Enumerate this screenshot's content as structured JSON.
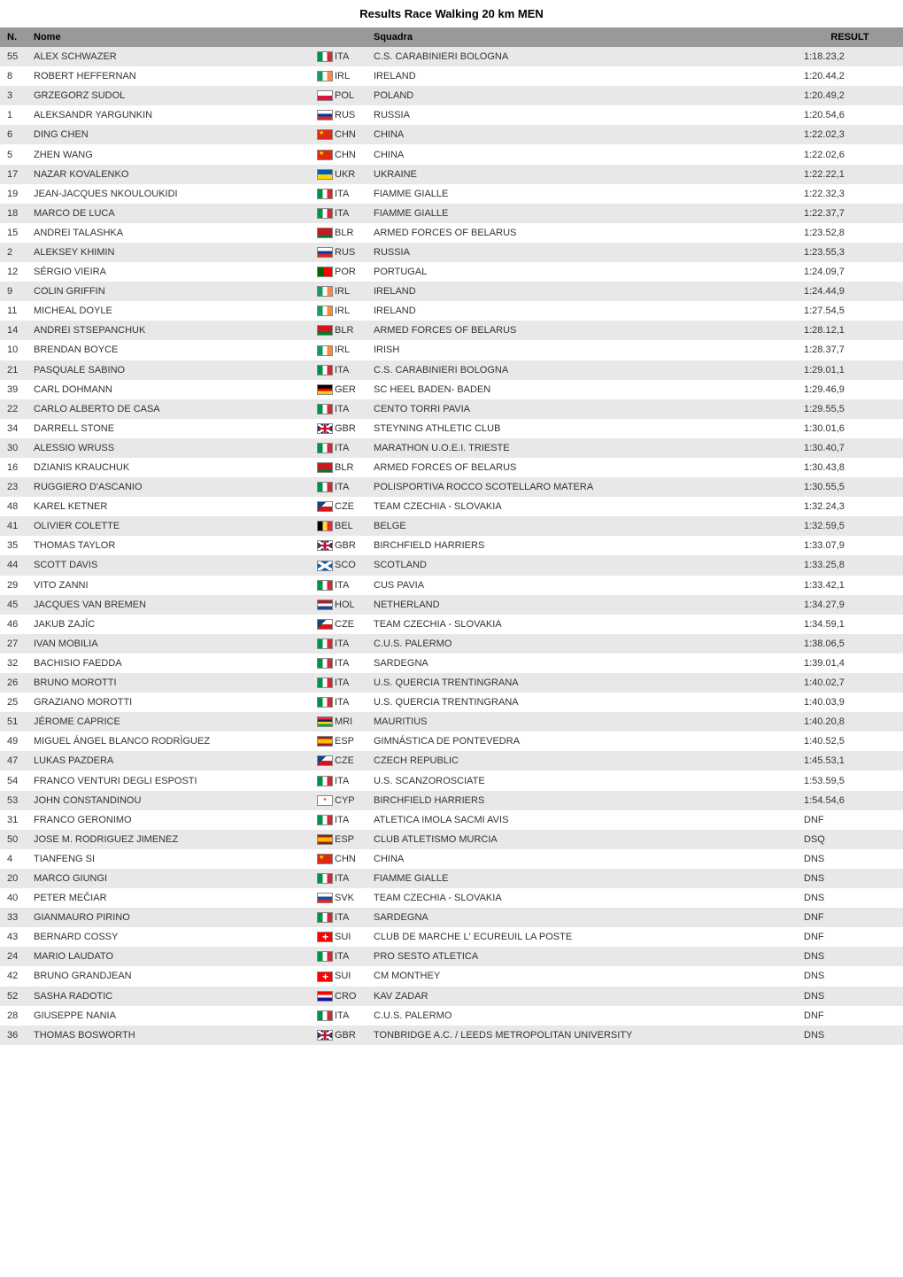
{
  "title": "Results Race Walking 20 km MEN",
  "headers": {
    "n": "N.",
    "nome": "Nome",
    "squadra": "Squadra",
    "result": "RESULT"
  },
  "rows": [
    {
      "n": "55",
      "nome": "ALEX SCHWAZER",
      "cc": "ITA",
      "flag": "ita",
      "squadra": "C.S. CARABINIERI BOLOGNA",
      "result": "1:18.23,2"
    },
    {
      "n": "8",
      "nome": "ROBERT HEFFERNAN",
      "cc": "IRL",
      "flag": "irl",
      "squadra": "IRELAND",
      "result": "1:20.44,2"
    },
    {
      "n": "3",
      "nome": "GRZEGORZ SUDOL",
      "cc": "POL",
      "flag": "pol",
      "squadra": "POLAND",
      "result": "1:20.49,2"
    },
    {
      "n": "1",
      "nome": "ALEKSANDR YARGUNKIN",
      "cc": "RUS",
      "flag": "rus",
      "squadra": "RUSSIA",
      "result": "1:20.54,6"
    },
    {
      "n": "6",
      "nome": "DING CHEN",
      "cc": "CHN",
      "flag": "chn",
      "squadra": "CHINA",
      "result": "1:22.02,3"
    },
    {
      "n": "5",
      "nome": "ZHEN WANG",
      "cc": "CHN",
      "flag": "chn",
      "squadra": "CHINA",
      "result": "1:22.02,6"
    },
    {
      "n": "17",
      "nome": "NAZAR KOVALENKO",
      "cc": "UKR",
      "flag": "ukr",
      "squadra": "UKRAINE",
      "result": "1:22.22,1"
    },
    {
      "n": "19",
      "nome": "JEAN-JACQUES NKOULOUKIDI",
      "cc": "ITA",
      "flag": "ita",
      "squadra": "FIAMME GIALLE",
      "result": "1:22.32,3"
    },
    {
      "n": "18",
      "nome": "MARCO DE LUCA",
      "cc": "ITA",
      "flag": "ita",
      "squadra": "FIAMME GIALLE",
      "result": "1:22.37,7"
    },
    {
      "n": "15",
      "nome": "ANDREI TALASHKA",
      "cc": "BLR",
      "flag": "blr",
      "squadra": "ARMED FORCES OF BELARUS",
      "result": "1:23.52,8"
    },
    {
      "n": "2",
      "nome": "ALEKSEY KHIMIN",
      "cc": "RUS",
      "flag": "rus",
      "squadra": "RUSSIA",
      "result": "1:23.55,3"
    },
    {
      "n": "12",
      "nome": "SÉRGIO VIEIRA",
      "cc": "POR",
      "flag": "por",
      "squadra": "PORTUGAL",
      "result": "1:24.09,7"
    },
    {
      "n": "9",
      "nome": "COLIN GRIFFIN",
      "cc": "IRL",
      "flag": "irl",
      "squadra": "IRELAND",
      "result": "1:24.44,9"
    },
    {
      "n": "11",
      "nome": "MICHEAL DOYLE",
      "cc": "IRL",
      "flag": "irl",
      "squadra": "IRELAND",
      "result": "1:27.54,5"
    },
    {
      "n": "14",
      "nome": "ANDREI STSEPANCHUK",
      "cc": "BLR",
      "flag": "blr",
      "squadra": "ARMED FORCES OF BELARUS",
      "result": "1:28.12,1"
    },
    {
      "n": "10",
      "nome": "BRENDAN BOYCE",
      "cc": "IRL",
      "flag": "irl",
      "squadra": "IRISH",
      "result": "1:28.37,7"
    },
    {
      "n": "21",
      "nome": "PASQUALE SABINO",
      "cc": "ITA",
      "flag": "ita",
      "squadra": "C.S. CARABINIERI BOLOGNA",
      "result": "1:29.01,1"
    },
    {
      "n": "39",
      "nome": "CARL DOHMANN",
      "cc": "GER",
      "flag": "ger",
      "squadra": "SC HEEL BADEN- BADEN",
      "result": "1:29.46,9"
    },
    {
      "n": "22",
      "nome": "CARLO ALBERTO DE CASA",
      "cc": "ITA",
      "flag": "ita",
      "squadra": "CENTO TORRI PAVIA",
      "result": "1:29.55,5"
    },
    {
      "n": "34",
      "nome": "DARRELL STONE",
      "cc": "GBR",
      "flag": "gbr",
      "squadra": "STEYNING ATHLETIC CLUB",
      "result": "1:30.01,6"
    },
    {
      "n": "30",
      "nome": "ALESSIO WRUSS",
      "cc": "ITA",
      "flag": "ita",
      "squadra": "MARATHON U.O.E.I. TRIESTE",
      "result": "1:30.40,7"
    },
    {
      "n": "16",
      "nome": "DZIANIS KRAUCHUK",
      "cc": "BLR",
      "flag": "blr",
      "squadra": "ARMED FORCES OF BELARUS",
      "result": "1:30.43,8"
    },
    {
      "n": "23",
      "nome": "RUGGIERO D'ASCANIO",
      "cc": "ITA",
      "flag": "ita",
      "squadra": "POLISPORTIVA ROCCO SCOTELLARO MATERA",
      "result": "1:30.55,5"
    },
    {
      "n": "48",
      "nome": "KAREL KETNER",
      "cc": "CZE",
      "flag": "cze",
      "squadra": "TEAM CZECHIA - SLOVAKIA",
      "result": "1:32.24,3"
    },
    {
      "n": "41",
      "nome": "OLIVIER COLETTE",
      "cc": "BEL",
      "flag": "bel",
      "squadra": "BELGE",
      "result": "1:32.59,5"
    },
    {
      "n": "35",
      "nome": "THOMAS TAYLOR",
      "cc": "GBR",
      "flag": "gbr",
      "squadra": "BIRCHFIELD HARRIERS",
      "result": "1:33.07,9"
    },
    {
      "n": "44",
      "nome": "SCOTT DAVIS",
      "cc": "SCO",
      "flag": "sco",
      "squadra": "SCOTLAND",
      "result": "1:33.25,8"
    },
    {
      "n": "29",
      "nome": "VITO ZANNI",
      "cc": "ITA",
      "flag": "ita",
      "squadra": "CUS PAVIA",
      "result": "1:33.42,1"
    },
    {
      "n": "45",
      "nome": "JACQUES VAN BREMEN",
      "cc": "HOL",
      "flag": "hol",
      "squadra": "NETHERLAND",
      "result": "1:34.27,9"
    },
    {
      "n": "46",
      "nome": "JAKUB ZAJÍC",
      "cc": "CZE",
      "flag": "cze",
      "squadra": "TEAM CZECHIA - SLOVAKIA",
      "result": "1:34.59,1"
    },
    {
      "n": "27",
      "nome": "IVAN MOBILIA",
      "cc": "ITA",
      "flag": "ita",
      "squadra": "C.U.S. PALERMO",
      "result": "1:38.06,5"
    },
    {
      "n": "32",
      "nome": "BACHISIO FAEDDA",
      "cc": "ITA",
      "flag": "ita",
      "squadra": "SARDEGNA",
      "result": "1:39.01,4"
    },
    {
      "n": "26",
      "nome": "BRUNO MOROTTI",
      "cc": "ITA",
      "flag": "ita",
      "squadra": "U.S. QUERCIA TRENTINGRANA",
      "result": "1:40.02,7"
    },
    {
      "n": "25",
      "nome": "GRAZIANO MOROTTI",
      "cc": "ITA",
      "flag": "ita",
      "squadra": "U.S. QUERCIA TRENTINGRANA",
      "result": "1:40.03,9"
    },
    {
      "n": "51",
      "nome": "JÉROME CAPRICE",
      "cc": "MRI",
      "flag": "mri",
      "squadra": "MAURITIUS",
      "result": "1:40.20,8"
    },
    {
      "n": "49",
      "nome": "MIGUEL ÁNGEL BLANCO RODRÌGUEZ",
      "cc": "ESP",
      "flag": "esp",
      "squadra": "GIMNÁSTICA DE PONTEVEDRA",
      "result": "1:40.52,5"
    },
    {
      "n": "47",
      "nome": "LUKAS PAZDERA",
      "cc": "CZE",
      "flag": "cze",
      "squadra": "CZECH REPUBLIC",
      "result": "1:45.53,1"
    },
    {
      "n": "54",
      "nome": "FRANCO VENTURI DEGLI ESPOSTI",
      "cc": "ITA",
      "flag": "ita",
      "squadra": "U.S. SCANZOROSCIATE",
      "result": "1:53.59,5"
    },
    {
      "n": "53",
      "nome": "JOHN CONSTANDINOU",
      "cc": "CYP",
      "flag": "cyp",
      "squadra": "BIRCHFIELD HARRIERS",
      "result": "1:54.54,6"
    },
    {
      "n": "31",
      "nome": "FRANCO GERONIMO",
      "cc": "ITA",
      "flag": "ita",
      "squadra": "ATLETICA IMOLA SACMI AVIS",
      "result": "DNF"
    },
    {
      "n": "50",
      "nome": "JOSE M. RODRIGUEZ JIMENEZ",
      "cc": "ESP",
      "flag": "esp",
      "squadra": "CLUB ATLETISMO MURCIA",
      "result": "DSQ"
    },
    {
      "n": "4",
      "nome": "TIANFENG SI",
      "cc": "CHN",
      "flag": "chn",
      "squadra": "CHINA",
      "result": "DNS"
    },
    {
      "n": "20",
      "nome": "MARCO GIUNGI",
      "cc": "ITA",
      "flag": "ita",
      "squadra": "FIAMME GIALLE",
      "result": "DNS"
    },
    {
      "n": "40",
      "nome": "PETER MEČIAR",
      "cc": "SVK",
      "flag": "svk",
      "squadra": "TEAM CZECHIA - SLOVAKIA",
      "result": "DNS"
    },
    {
      "n": "33",
      "nome": "GIANMAURO PIRINO",
      "cc": "ITA",
      "flag": "ita",
      "squadra": "SARDEGNA",
      "result": "DNF"
    },
    {
      "n": "43",
      "nome": "BERNARD COSSY",
      "cc": "SUI",
      "flag": "sui",
      "squadra": "CLUB DE MARCHE L' ECUREUIL LA POSTE",
      "result": "DNF"
    },
    {
      "n": "24",
      "nome": "MARIO LAUDATO",
      "cc": "ITA",
      "flag": "ita",
      "squadra": "PRO SESTO ATLETICA",
      "result": "DNS"
    },
    {
      "n": "42",
      "nome": "BRUNO GRANDJEAN",
      "cc": "SUI",
      "flag": "sui",
      "squadra": "CM MONTHEY",
      "result": "DNS"
    },
    {
      "n": "52",
      "nome": "SASHA RADOTIC",
      "cc": "CRO",
      "flag": "cro",
      "squadra": "KAV ZADAR",
      "result": "DNS"
    },
    {
      "n": "28",
      "nome": "GIUSEPPE NANIA",
      "cc": "ITA",
      "flag": "ita",
      "squadra": "C.U.S. PALERMO",
      "result": "DNF"
    },
    {
      "n": "36",
      "nome": "THOMAS BOSWORTH",
      "cc": "GBR",
      "flag": "gbr",
      "squadra": "TONBRIDGE A.C. / LEEDS METROPOLITAN UNIVERSITY",
      "result": "DNS"
    }
  ]
}
